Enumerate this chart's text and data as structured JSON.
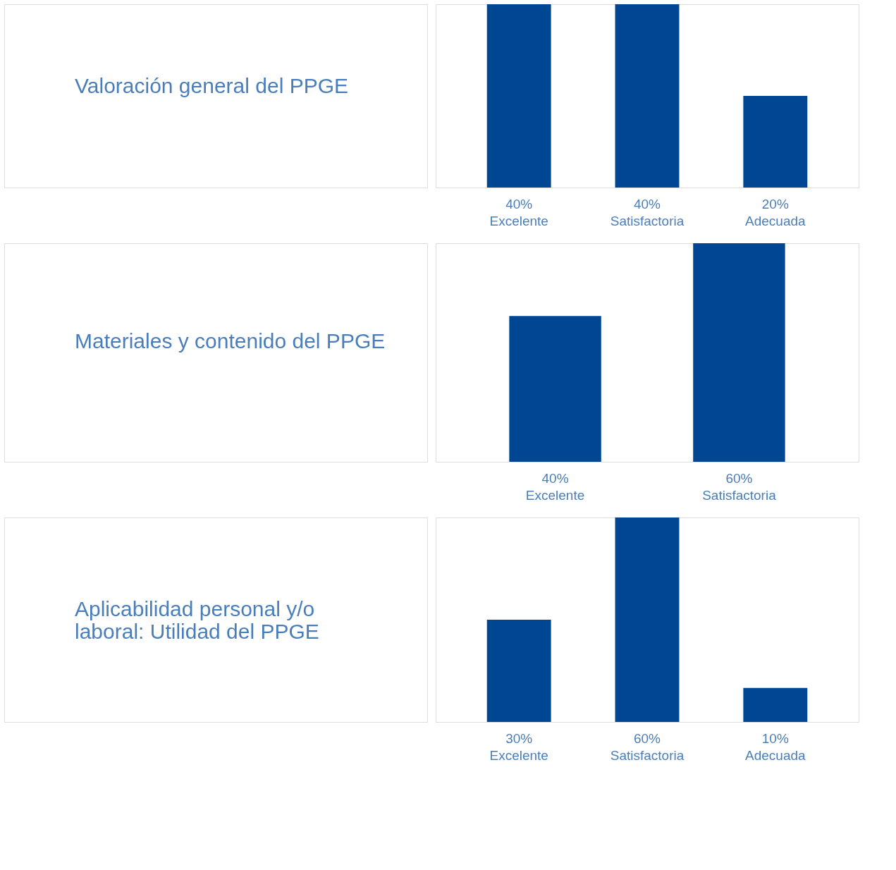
{
  "chart_data": [
    {
      "type": "bar",
      "title": "Valoración general del PPGE",
      "categories": [
        "Excelente",
        "Satisfactoria",
        "Adecuada"
      ],
      "values": [
        40,
        40,
        20
      ],
      "value_labels": [
        "40%",
        "40%",
        "20%"
      ],
      "color": "#004693"
    },
    {
      "type": "bar",
      "title": "Materiales y contenido del PPGE",
      "categories": [
        "Excelente",
        "Satisfactoria"
      ],
      "values": [
        40,
        60
      ],
      "value_labels": [
        "40%",
        "60%"
      ],
      "color": "#004693"
    },
    {
      "type": "bar",
      "title": "Aplicabilidad personal y/o\nlaboral: Utilidad del PPGE",
      "categories": [
        "Excelente",
        "Satisfactoria",
        "Adecuada"
      ],
      "values": [
        30,
        60,
        10
      ],
      "value_labels": [
        "30%",
        "60%",
        "10%"
      ],
      "color": "#004693"
    }
  ]
}
